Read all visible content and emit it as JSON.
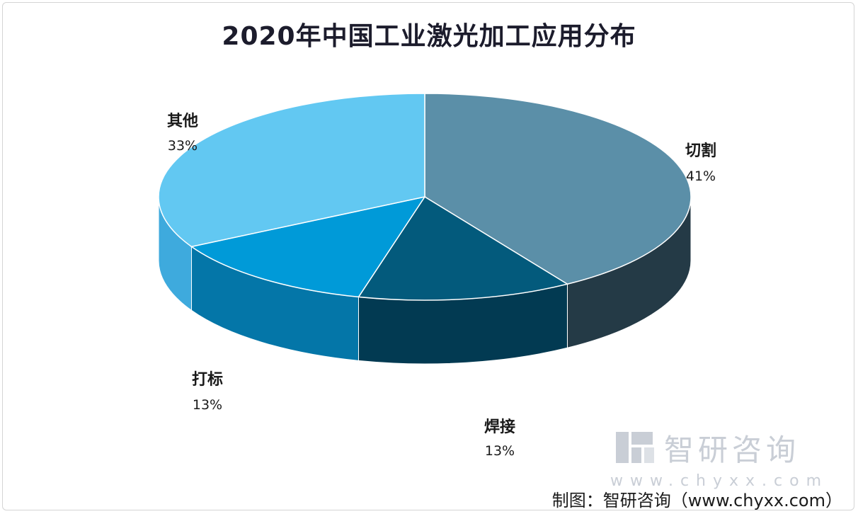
{
  "chart_data": {
    "type": "pie",
    "title": "2020年中国工业激光加工应用分布",
    "slices": [
      {
        "label": "切割",
        "value": 41,
        "value_text": "41%",
        "color": "#5b8fa8",
        "side_color": "#243a46"
      },
      {
        "label": "焊接",
        "value": 13,
        "value_text": "13%",
        "color": "#035a7c",
        "side_color": "#023a52"
      },
      {
        "label": "打标",
        "value": 13,
        "value_text": "13%",
        "color": "#009ad8",
        "side_color": "#0476a8"
      },
      {
        "label": "其他",
        "value": 33,
        "value_text": "33%",
        "color": "#62c8f2",
        "side_color": "#3eaadd"
      }
    ],
    "style": "3d-pie"
  },
  "watermark": {
    "name": "智研咨询",
    "url": "www.chyxx.com"
  },
  "source": "制图：智研咨询（www.chyxx.com）"
}
